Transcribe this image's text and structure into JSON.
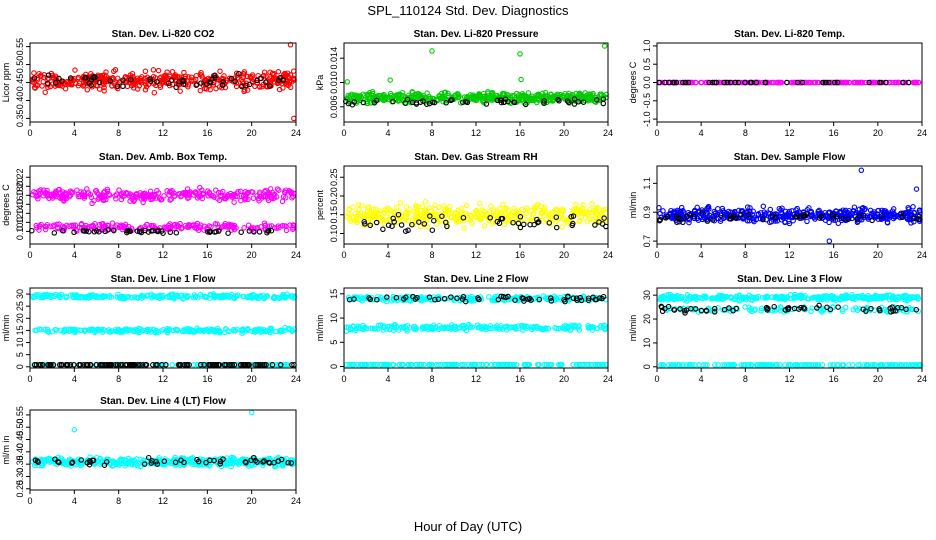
{
  "figure": {
    "title": "SPL_110124  Std. Dev. Diagnostics",
    "xlabel": "Hour of Day (UTC)"
  },
  "colors": {
    "red": "#ff0000",
    "green": "#00cc00",
    "magenta": "#ff00ff",
    "yellow": "#ffff00",
    "blue": "#0000ff",
    "cyan": "#00ffff",
    "black": "#000000"
  },
  "chart_data": [
    {
      "type": "scatter",
      "title": "Stan. Dev. Li-820 CO2",
      "ylabel": "Licor ppm",
      "xlim": [
        0,
        24
      ],
      "ylim": [
        0.34,
        0.56
      ],
      "xticks": [
        0,
        4,
        8,
        12,
        16,
        20,
        24
      ],
      "xticklabels": [
        "0",
        "4",
        "8",
        "12",
        "16",
        "20",
        "24"
      ],
      "yticks": [
        0.35,
        0.4,
        0.45,
        0.5,
        0.55
      ],
      "yticklabels": [
        "0.35",
        "0.40",
        "0.45",
        "0.50",
        "0.55"
      ],
      "series": [
        {
          "name": "main",
          "color": "red",
          "bands": [
            {
              "center": 0.455,
              "spread": 0.038,
              "count": 420
            }
          ],
          "outliers": [
            [
              23.5,
              0.555
            ],
            [
              23.8,
              0.35
            ]
          ]
        },
        {
          "name": "line",
          "color": "black",
          "bands": [
            {
              "center": 0.455,
              "spread": 0.025,
              "count": 55
            }
          ]
        }
      ]
    },
    {
      "type": "scatter",
      "title": "Stan. Dev. Li-820 Pressure",
      "ylabel": "kPa",
      "xlim": [
        0,
        24
      ],
      "ylim": [
        0.0035,
        0.0165
      ],
      "xticks": [
        0,
        4,
        8,
        12,
        16,
        20,
        24
      ],
      "xticklabels": [
        "0",
        "4",
        "8",
        "12",
        "16",
        "20",
        "24"
      ],
      "yticks": [
        0.006,
        0.01,
        0.014
      ],
      "yticklabels": [
        "0.006",
        "0.010",
        "0.014"
      ],
      "series": [
        {
          "name": "main",
          "color": "green",
          "bands": [
            {
              "center": 0.0075,
              "spread": 0.0012,
              "count": 460
            }
          ],
          "outliers": [
            [
              0.3,
              0.0101
            ],
            [
              4.2,
              0.0104
            ],
            [
              8.0,
              0.0152
            ],
            [
              16.0,
              0.0147
            ],
            [
              16.1,
              0.0105
            ],
            [
              23.7,
              0.016
            ]
          ]
        },
        {
          "name": "line",
          "color": "black",
          "bands": [
            {
              "center": 0.0068,
              "spread": 0.0008,
              "count": 50
            }
          ]
        }
      ]
    },
    {
      "type": "scatter",
      "title": "Stan. Dev. Li-820 Temp.",
      "ylabel": "degrees C",
      "xlim": [
        0,
        24
      ],
      "ylim": [
        -1.08,
        1.08
      ],
      "xticks": [
        0,
        4,
        8,
        12,
        16,
        20,
        24
      ],
      "xticklabels": [
        "0",
        "4",
        "8",
        "12",
        "16",
        "20",
        "24"
      ],
      "yticks": [
        -1.0,
        -0.5,
        0.0,
        0.5,
        1.0
      ],
      "yticklabels": [
        "-1.0",
        "-0.5",
        "0.0",
        "0.5",
        "1.0"
      ],
      "series": [
        {
          "name": "main",
          "color": "magenta",
          "bands": [
            {
              "center": 0.0,
              "spread": 0.0,
              "count": 200
            }
          ]
        },
        {
          "name": "line",
          "color": "black",
          "bands": [
            {
              "center": 0.0,
              "spread": 0.0,
              "count": 40
            }
          ]
        }
      ]
    },
    {
      "type": "scatter",
      "title": "Stan. Dev. Amb. Box Temp.",
      "ylabel": "degrees C",
      "xlim": [
        0,
        24
      ],
      "ylim": [
        0.072,
        0.245
      ],
      "xticks": [
        0,
        4,
        8,
        12,
        16,
        20,
        24
      ],
      "xticklabels": [
        "0",
        "4",
        "8",
        "12",
        "16",
        "20",
        "24"
      ],
      "yticks": [
        0.1,
        0.12,
        0.14,
        0.16,
        0.18,
        0.2,
        0.22
      ],
      "yticklabels": [
        "0.10",
        "0.12",
        "0.14",
        "0.16",
        "0.18",
        "0.20",
        "0.22"
      ],
      "series": [
        {
          "name": "main",
          "color": "magenta",
          "bands": [
            {
              "center": 0.18,
              "spread": 0.02,
              "count": 300
            },
            {
              "center": 0.11,
              "spread": 0.012,
              "count": 200
            }
          ]
        },
        {
          "name": "line",
          "color": "black",
          "bands": [
            {
              "center": 0.1,
              "spread": 0.006,
              "count": 50
            }
          ]
        }
      ]
    },
    {
      "type": "scatter",
      "title": "Stan. Dev. Gas Stream RH",
      "ylabel": "percent",
      "xlim": [
        0,
        24
      ],
      "ylim": [
        0.072,
        0.28
      ],
      "xticks": [
        0,
        4,
        8,
        12,
        16,
        20,
        24
      ],
      "xticklabels": [
        "0",
        "4",
        "8",
        "12",
        "16",
        "20",
        "24"
      ],
      "yticks": [
        0.1,
        0.15,
        0.2,
        0.25
      ],
      "yticklabels": [
        "0.10",
        "0.15",
        "0.20",
        "0.25"
      ],
      "series": [
        {
          "name": "main",
          "color": "yellow",
          "bands": [
            {
              "center": 0.15,
              "spread": 0.04,
              "count": 380
            }
          ]
        },
        {
          "name": "line",
          "color": "black",
          "bands": [
            {
              "center": 0.13,
              "spread": 0.03,
              "count": 50
            }
          ]
        }
      ]
    },
    {
      "type": "scatter",
      "title": "Stan. Dev. Sample Flow",
      "ylabel": "ml/min",
      "xlim": [
        0,
        24
      ],
      "ylim": [
        0.68,
        1.22
      ],
      "xticks": [
        0,
        4,
        8,
        12,
        16,
        20,
        24
      ],
      "xticklabels": [
        "0",
        "4",
        "8",
        "12",
        "16",
        "20",
        "24"
      ],
      "yticks": [
        0.7,
        0.9,
        1.1
      ],
      "yticklabels": [
        "0.7",
        "0.9",
        "1.1"
      ],
      "series": [
        {
          "name": "main",
          "color": "blue",
          "bands": [
            {
              "center": 0.88,
              "spread": 0.07,
              "count": 460
            }
          ],
          "outliers": [
            [
              18.5,
              1.19
            ],
            [
              15.6,
              0.7
            ],
            [
              23.5,
              1.06
            ]
          ]
        },
        {
          "name": "line",
          "color": "black",
          "bands": [
            {
              "center": 0.86,
              "spread": 0.05,
              "count": 50
            }
          ]
        }
      ]
    },
    {
      "type": "scatter",
      "title": "Stan. Dev. Line 1 Flow",
      "ylabel": "ml/min",
      "xlim": [
        0,
        24
      ],
      "ylim": [
        -0.5,
        32.5
      ],
      "xticks": [
        0,
        4,
        8,
        12,
        16,
        20,
        24
      ],
      "xticklabels": [
        "0",
        "4",
        "8",
        "12",
        "16",
        "20",
        "24"
      ],
      "yticks": [
        0,
        5,
        10,
        15,
        20,
        25,
        30
      ],
      "yticklabels": [
        "0",
        "5",
        "10",
        "15",
        "20",
        "25",
        "30"
      ],
      "series": [
        {
          "name": "main",
          "color": "cyan",
          "bands": [
            {
              "center": 29,
              "spread": 1.2,
              "count": 250
            },
            {
              "center": 15,
              "spread": 1.3,
              "count": 220
            },
            {
              "center": 0.8,
              "spread": 0.0,
              "count": 120
            }
          ]
        },
        {
          "name": "line",
          "color": "black",
          "bands": [
            {
              "center": 0.8,
              "spread": 0.0,
              "count": 120
            }
          ]
        }
      ]
    },
    {
      "type": "scatter",
      "title": "Stan. Dev. Line 2 Flow",
      "ylabel": "ml/min",
      "xlim": [
        0,
        24
      ],
      "ylim": [
        -0.3,
        16.2
      ],
      "xticks": [
        0,
        4,
        8,
        12,
        16,
        20,
        24
      ],
      "xticklabels": [
        "0",
        "4",
        "8",
        "12",
        "16",
        "20",
        "24"
      ],
      "yticks": [
        0,
        5,
        10,
        15
      ],
      "yticklabels": [
        "0",
        "5",
        "10",
        "15"
      ],
      "series": [
        {
          "name": "main",
          "color": "cyan",
          "bands": [
            {
              "center": 14,
              "spread": 0.7,
              "count": 250
            },
            {
              "center": 8,
              "spread": 0.8,
              "count": 220
            },
            {
              "center": 0.4,
              "spread": 0.0,
              "count": 160
            }
          ]
        },
        {
          "name": "line",
          "color": "black",
          "bands": [
            {
              "center": 14,
              "spread": 0.7,
              "count": 55
            }
          ]
        }
      ]
    },
    {
      "type": "scatter",
      "title": "Stan. Dev. Line 3 Flow",
      "ylabel": "ml/min",
      "xlim": [
        0,
        24
      ],
      "ylim": [
        -0.5,
        33
      ],
      "xticks": [
        0,
        4,
        8,
        12,
        16,
        20,
        24
      ],
      "xticklabels": [
        "0",
        "4",
        "8",
        "12",
        "16",
        "20",
        "24"
      ],
      "yticks": [
        0,
        10,
        20,
        30
      ],
      "yticklabels": [
        "0",
        "10",
        "20",
        "30"
      ],
      "series": [
        {
          "name": "main",
          "color": "cyan",
          "bands": [
            {
              "center": 29,
              "spread": 1.5,
              "count": 330
            },
            {
              "center": 24,
              "spread": 1.5,
              "count": 120
            },
            {
              "center": 0.8,
              "spread": 0.0,
              "count": 160
            }
          ]
        },
        {
          "name": "line",
          "color": "black",
          "bands": [
            {
              "center": 24,
              "spread": 2.0,
              "count": 55
            }
          ]
        }
      ]
    },
    {
      "type": "scatter",
      "title": "Stan. Dev. Line 4 (LT) Flow",
      "ylabel": "ml/m in",
      "xlim": [
        0,
        24
      ],
      "ylim": [
        0.245,
        0.57
      ],
      "xticks": [
        0,
        4,
        8,
        12,
        16,
        20,
        24
      ],
      "xticklabels": [
        "0",
        "4",
        "8",
        "12",
        "16",
        "20",
        "24"
      ],
      "yticks": [
        0.25,
        0.3,
        0.35,
        0.4,
        0.45,
        0.5,
        0.55
      ],
      "yticklabels": [
        "0.25",
        "0.30",
        "0.35",
        "0.40",
        "0.45",
        "0.50",
        "0.55"
      ],
      "series": [
        {
          "name": "main",
          "color": "cyan",
          "bands": [
            {
              "center": 0.36,
              "spread": 0.025,
              "count": 420
            }
          ],
          "outliers": [
            [
              4.0,
              0.49
            ],
            [
              20.0,
              0.56
            ]
          ]
        },
        {
          "name": "line",
          "color": "black",
          "bands": [
            {
              "center": 0.36,
              "spread": 0.02,
              "count": 50
            }
          ]
        }
      ]
    }
  ]
}
